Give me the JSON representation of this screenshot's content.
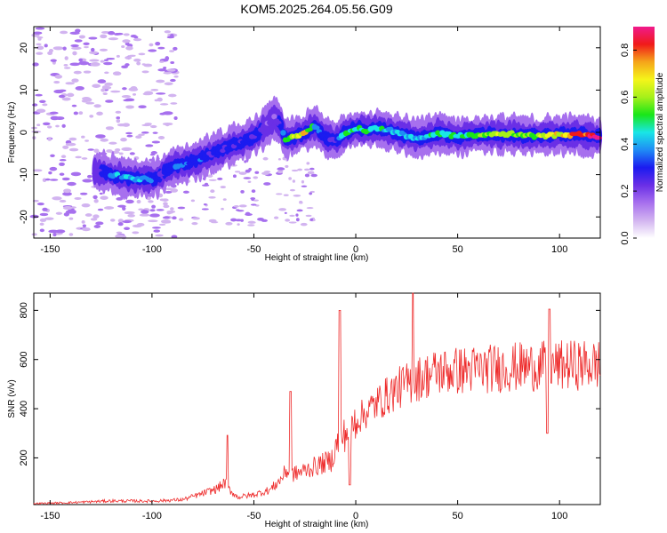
{
  "title": "KOM5.2025.264.05.56.G09",
  "colors": {
    "snr_line": "#ee2b2b",
    "frame": "#000000",
    "colormap": [
      "#ffffff",
      "#d2b4f0",
      "#a770ee",
      "#6a2fe6",
      "#1b1bf0",
      "#1f8cf5",
      "#19e6e6",
      "#19e619",
      "#a6f01a",
      "#f5f51a",
      "#f5a51a",
      "#f01a1a",
      "#f01a8c"
    ]
  },
  "chart_data": [
    {
      "type": "heatmap",
      "title": "KOM5.2025.264.05.56.G09",
      "xlabel": "Height of straight line (km)",
      "ylabel": "Frequency (Hz)",
      "xlim": [
        -158,
        120
      ],
      "ylim": [
        -25,
        25
      ],
      "x_ticks": [
        -150,
        -100,
        -50,
        0,
        50,
        100
      ],
      "y_ticks": [
        -20,
        -10,
        0,
        10,
        20
      ],
      "colorbar": {
        "label": "Normalized spectral amplitude",
        "range": [
          0,
          0.9
        ],
        "ticks": [
          0.0,
          0.2,
          0.4,
          0.6,
          0.8
        ]
      },
      "ridge": {
        "x": [
          -128,
          -120,
          -110,
          -100,
          -95,
          -90,
          -80,
          -70,
          -60,
          -50,
          -45,
          -40,
          -37,
          -35,
          -30,
          -25,
          -20,
          -15,
          -10,
          -5,
          0,
          5,
          10,
          20,
          30,
          35,
          40,
          50,
          60,
          70,
          80,
          90,
          100,
          110,
          120
        ],
        "y": [
          -9,
          -10,
          -11,
          -11,
          -10,
          -8,
          -7,
          -5,
          -3,
          -1,
          1,
          3.5,
          2,
          -1.5,
          -1,
          0,
          1.5,
          -1,
          -2,
          0,
          1,
          0.5,
          1,
          0,
          -1.5,
          -1,
          0,
          -1,
          -0.5,
          -0.5,
          -0.5,
          -1,
          -0.5,
          -0.5,
          -1
        ],
        "amplitude": [
          0.2,
          0.4,
          0.45,
          0.4,
          0.25,
          0.35,
          0.35,
          0.3,
          0.3,
          0.3,
          0.25,
          0.2,
          0.3,
          0.5,
          0.7,
          0.75,
          0.45,
          0.3,
          0.3,
          0.55,
          0.55,
          0.55,
          0.5,
          0.45,
          0.45,
          0.5,
          0.5,
          0.55,
          0.6,
          0.65,
          0.6,
          0.65,
          0.7,
          0.85,
          0.9
        ]
      }
    },
    {
      "type": "line",
      "xlabel": "Height of straight line (km)",
      "ylabel": "SNR (v/v)",
      "xlim": [
        -158,
        120
      ],
      "ylim": [
        10,
        870
      ],
      "x_ticks": [
        -150,
        -100,
        -50,
        0,
        50,
        100
      ],
      "y_ticks": [
        200,
        400,
        600,
        800
      ],
      "trend": {
        "x": [
          -158,
          -140,
          -120,
          -100,
          -85,
          -75,
          -68,
          -64,
          -62,
          -58,
          -50,
          -42,
          -37,
          -34,
          -32,
          -28,
          -20,
          -12,
          -9,
          -7,
          -5,
          0,
          10,
          20,
          30,
          40,
          60,
          80,
          100,
          120
        ],
        "y": [
          14,
          18,
          25,
          24,
          30,
          55,
          75,
          100,
          70,
          40,
          50,
          70,
          110,
          150,
          130,
          140,
          165,
          190,
          260,
          280,
          300,
          350,
          420,
          480,
          520,
          550,
          560,
          570,
          575,
          580
        ]
      },
      "spikes": [
        {
          "x": -63,
          "y": 292
        },
        {
          "x": -32,
          "y": 470
        },
        {
          "x": -8,
          "y": 800
        },
        {
          "x": -3,
          "y": 90
        },
        {
          "x": 28,
          "y": 870
        },
        {
          "x": 95,
          "y": 805
        },
        {
          "x": 94,
          "y": 300
        }
      ]
    }
  ]
}
